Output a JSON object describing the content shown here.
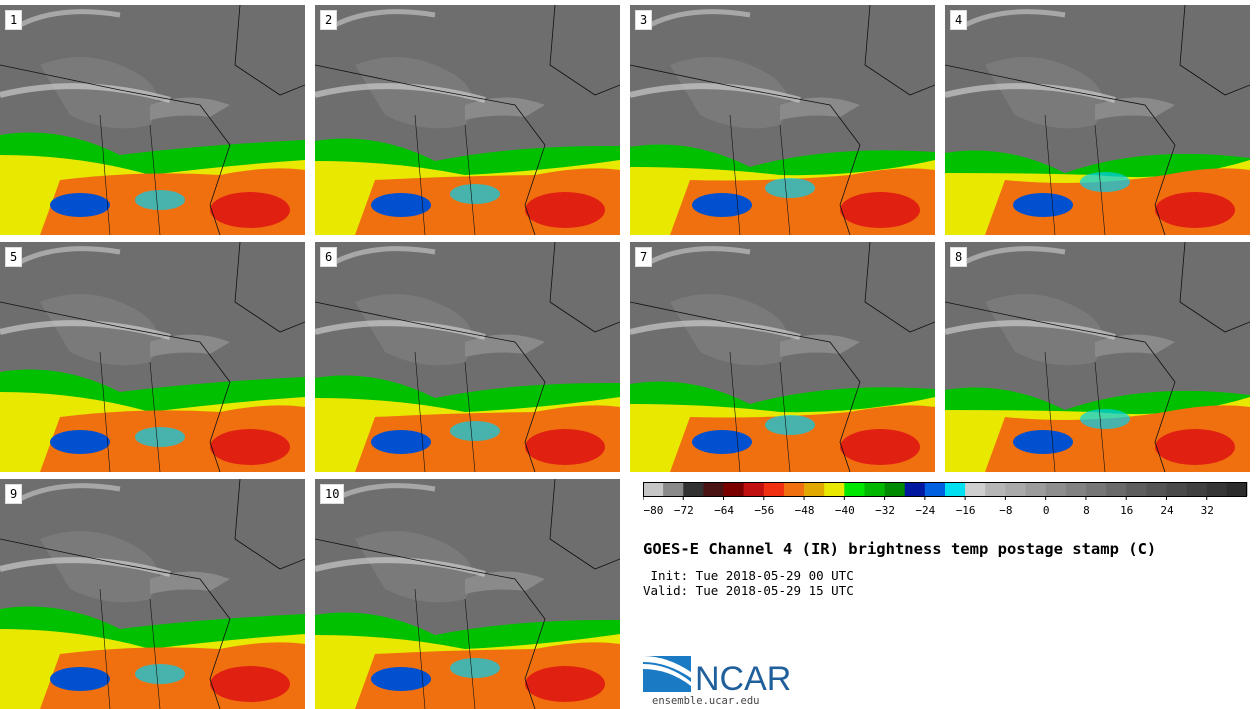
{
  "panels": [
    {
      "label": "1"
    },
    {
      "label": "2"
    },
    {
      "label": "3"
    },
    {
      "label": "4"
    },
    {
      "label": "5"
    },
    {
      "label": "6"
    },
    {
      "label": "7"
    },
    {
      "label": "8"
    },
    {
      "label": "9"
    },
    {
      "label": "10"
    }
  ],
  "colorbar": {
    "colors": [
      "#c6c6c6",
      "#8a8a8a",
      "#323232",
      "#4a1414",
      "#7a0000",
      "#c01010",
      "#f03010",
      "#f07010",
      "#e0a800",
      "#e8e800",
      "#00e800",
      "#00b800",
      "#008a00",
      "#0018a0",
      "#0060e0",
      "#00e0f0",
      "#cfcfcf",
      "#b6b6b6",
      "#aaaaaa",
      "#9c9c9c",
      "#8e8e8e",
      "#828282",
      "#767676",
      "#6a6a6a",
      "#5e5e5e",
      "#545454",
      "#4a4a4a",
      "#404040",
      "#363636",
      "#2c2c2c"
    ],
    "ticks": [
      "−80",
      "−72",
      "−64",
      "−56",
      "−48",
      "−40",
      "−32",
      "−24",
      "−16",
      "−8",
      "0",
      "8",
      "16",
      "24",
      "32"
    ]
  },
  "title": "GOES-E Channel 4 (IR) brightness temp postage stamp (C)",
  "init": " Init: Tue 2018-05-29 00 UTC",
  "valid": "Valid: Tue 2018-05-29 15 UTC",
  "logo": {
    "text": "NCAR",
    "color": "#1f5f9a"
  },
  "url": "ensemble.ucar.edu"
}
